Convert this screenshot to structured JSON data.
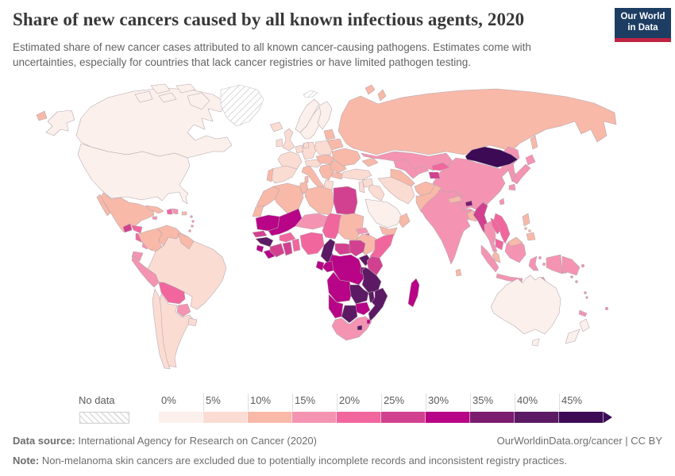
{
  "header": {
    "title": "Share of new cancers caused by all known infectious agents, 2020",
    "subtitle": "Estimated share of new cancer cases attributed to all known cancer-causing pathogens. Estimates come with uncertainties, especially for countries that lack cancer registries or have limited pathogen testing.",
    "logo": {
      "line1": "Our World",
      "line2": "in Data",
      "bg_color": "#1d3d63",
      "accent_color": "#bf2342"
    }
  },
  "legend": {
    "no_data_label": "No data",
    "bins": [
      {
        "label": "0%",
        "range": "0-5%",
        "color": "#fcf0ec"
      },
      {
        "label": "5%",
        "range": "5-10%",
        "color": "#fadcd3"
      },
      {
        "label": "10%",
        "range": "10-15%",
        "color": "#f8b9a9"
      },
      {
        "label": "15%",
        "range": "15-20%",
        "color": "#f494b2"
      },
      {
        "label": "20%",
        "range": "20-25%",
        "color": "#f2669e"
      },
      {
        "label": "25%",
        "range": "25-30%",
        "color": "#d2418f"
      },
      {
        "label": "30%",
        "range": "30-35%",
        "color": "#b80486"
      },
      {
        "label": "35%",
        "range": "35-40%",
        "color": "#7c1c6f"
      },
      {
        "label": "40%",
        "range": "40-45%",
        "color": "#5b1a63"
      },
      {
        "label": "45%",
        "range": "45%+",
        "color": "#3d0a56"
      }
    ]
  },
  "footer": {
    "data_source_label": "Data source:",
    "data_source_text": " International Agency for Research on Cancer (2020)",
    "link_text": "OurWorldinData.org/cancer | CC BY",
    "note_label": "Note:",
    "note_text": " Non-melanoma skin cancers are excluded due to potentially incomplete records and inconsistent registry practices."
  },
  "chart_data": {
    "type": "choropleth_map",
    "title": "Share of new cancers caused by all known infectious agents, 2020",
    "unit": "share of new cancer cases (%)",
    "legend_position": "bottom",
    "bins": [
      "0-5%",
      "5-10%",
      "10-15%",
      "15-20%",
      "20-25%",
      "25-30%",
      "30-35%",
      "35-40%",
      "40-45%",
      "45%+"
    ],
    "regions": {
      "canada": {
        "label": "Canada",
        "value": "0-5%",
        "color": "#fcf0ec"
      },
      "usa": {
        "label": "United States",
        "value": "0-5%",
        "color": "#fcf0ec"
      },
      "greenland": {
        "label": "Greenland",
        "value": "No data",
        "color": "pattern"
      },
      "svalbard": {
        "label": "Svalbard",
        "value": "No data",
        "color": "pattern"
      },
      "iceland": {
        "label": "Iceland",
        "value": "5-10%",
        "color": "#fadcd3"
      },
      "mexico": {
        "label": "Mexico",
        "value": "10-15%",
        "color": "#f8b9a9"
      },
      "guatemala": {
        "label": "Guatemala",
        "value": "25-30%",
        "color": "#d2418f"
      },
      "honduras": {
        "label": "Honduras",
        "value": "20-25%",
        "color": "#f2669e"
      },
      "nicaragua": {
        "label": "Nicaragua",
        "value": "20-25%",
        "color": "#f2669e"
      },
      "costa_rica": {
        "label": "Costa Rica",
        "value": "15-20%",
        "color": "#f494b2"
      },
      "panama": {
        "label": "Panama",
        "value": "15-20%",
        "color": "#f494b2"
      },
      "cuba": {
        "label": "Cuba",
        "value": "10-15%",
        "color": "#f8b9a9"
      },
      "jamaica": {
        "label": "Jamaica",
        "value": "15-20%",
        "color": "#f494b2"
      },
      "haiti": {
        "label": "Haiti",
        "value": "20-25%",
        "color": "#f2669e"
      },
      "dominican_republic": {
        "label": "Dominican Republic",
        "value": "15-20%",
        "color": "#f494b2"
      },
      "puerto_rico": {
        "label": "Puerto Rico",
        "value": "10-15%",
        "color": "#f8b9a9"
      },
      "lesser_antilles": {
        "label": "Lesser Antilles",
        "value": "15-20%",
        "color": "#f494b2"
      },
      "colombia": {
        "label": "Colombia",
        "value": "10-15%",
        "color": "#f8b9a9"
      },
      "venezuela": {
        "label": "Venezuela",
        "value": "10-15%",
        "color": "#f8b9a9"
      },
      "guyanas": {
        "label": "Guyana, Suriname & French Guiana",
        "value": "10-15%",
        "color": "#f8b9a9"
      },
      "ecuador": {
        "label": "Ecuador",
        "value": "15-20%",
        "color": "#f494b2"
      },
      "peru": {
        "label": "Peru",
        "value": "15-20%",
        "color": "#f494b2"
      },
      "brazil": {
        "label": "Brazil",
        "value": "5-10%",
        "color": "#fadcd3"
      },
      "bolivia": {
        "label": "Bolivia",
        "value": "20-25%",
        "color": "#f2669e"
      },
      "paraguay": {
        "label": "Paraguay",
        "value": "15-20%",
        "color": "#f494b2"
      },
      "chile": {
        "label": "Chile",
        "value": "5-10%",
        "color": "#fadcd3"
      },
      "argentina": {
        "label": "Argentina",
        "value": "5-10%",
        "color": "#fadcd3"
      },
      "uruguay": {
        "label": "Uruguay",
        "value": "5-10%",
        "color": "#fadcd3"
      },
      "norway": {
        "label": "Norway",
        "value": "0-5%",
        "color": "#fcf0ec"
      },
      "sweden": {
        "label": "Sweden",
        "value": "0-5%",
        "color": "#fcf0ec"
      },
      "finland": {
        "label": "Finland",
        "value": "0-5%",
        "color": "#fcf0ec"
      },
      "denmark": {
        "label": "Denmark",
        "value": "5-10%",
        "color": "#fadcd3"
      },
      "uk": {
        "label": "United Kingdom",
        "value": "5-10%",
        "color": "#fadcd3"
      },
      "ireland": {
        "label": "Ireland",
        "value": "5-10%",
        "color": "#fadcd3"
      },
      "france": {
        "label": "France",
        "value": "5-10%",
        "color": "#fadcd3"
      },
      "spain": {
        "label": "Spain",
        "value": "5-10%",
        "color": "#fadcd3"
      },
      "portugal": {
        "label": "Portugal",
        "value": "10-15%",
        "color": "#f8b9a9"
      },
      "benelux": {
        "label": "Belgium & Netherlands",
        "value": "5-10%",
        "color": "#fadcd3"
      },
      "germany": {
        "label": "Germany",
        "value": "5-10%",
        "color": "#fadcd3"
      },
      "switzerland_austria": {
        "label": "Switzerland & Austria",
        "value": "5-10%",
        "color": "#fadcd3"
      },
      "italy": {
        "label": "Italy",
        "value": "10-15%",
        "color": "#f8b9a9"
      },
      "poland": {
        "label": "Poland",
        "value": "5-10%",
        "color": "#fadcd3"
      },
      "czechia_hungary": {
        "label": "Czechia, Slovakia & Hungary",
        "value": "10-15%",
        "color": "#f8b9a9"
      },
      "balkans": {
        "label": "Balkans",
        "value": "10-15%",
        "color": "#f8b9a9"
      },
      "greece": {
        "label": "Greece",
        "value": "5-10%",
        "color": "#fadcd3"
      },
      "romania": {
        "label": "Romania",
        "value": "10-15%",
        "color": "#f8b9a9"
      },
      "bulgaria": {
        "label": "Bulgaria",
        "value": "10-15%",
        "color": "#f8b9a9"
      },
      "baltics": {
        "label": "Baltic states",
        "value": "10-15%",
        "color": "#f8b9a9"
      },
      "belarus": {
        "label": "Belarus",
        "value": "10-15%",
        "color": "#f8b9a9"
      },
      "ukraine": {
        "label": "Ukraine",
        "value": "10-15%",
        "color": "#f8b9a9"
      },
      "caucasus": {
        "label": "Caucasus",
        "value": "10-15%",
        "color": "#f8b9a9"
      },
      "russia": {
        "label": "Russia",
        "value": "10-15%",
        "color": "#f8b9a9"
      },
      "turkey": {
        "label": "Turkey",
        "value": "5-10%",
        "color": "#fadcd3"
      },
      "syria": {
        "label": "Syria",
        "value": "5-10%",
        "color": "#fadcd3"
      },
      "iraq": {
        "label": "Iraq",
        "value": "5-10%",
        "color": "#fadcd3"
      },
      "levant": {
        "label": "Jordan, Israel & Lebanon",
        "value": "5-10%",
        "color": "#fadcd3"
      },
      "saudi_arabia": {
        "label": "Saudi Arabia",
        "value": "0-5%",
        "color": "#fcf0ec"
      },
      "yemen": {
        "label": "Yemen",
        "value": "10-15%",
        "color": "#f8b9a9"
      },
      "oman": {
        "label": "Oman",
        "value": "10-15%",
        "color": "#f8b9a9"
      },
      "iran": {
        "label": "Iran",
        "value": "5-10%",
        "color": "#fadcd3"
      },
      "afghanistan": {
        "label": "Afghanistan",
        "value": "10-15%",
        "color": "#f8b9a9"
      },
      "pakistan": {
        "label": "Pakistan",
        "value": "10-15%",
        "color": "#f8b9a9"
      },
      "turkmenistan": {
        "label": "Turkmenistan",
        "value": "10-15%",
        "color": "#f8b9a9"
      },
      "uzbekistan": {
        "label": "Uzbekistan",
        "value": "15-20%",
        "color": "#f494b2"
      },
      "kyrgyzstan": {
        "label": "Kyrgyzstan",
        "value": "20-25%",
        "color": "#f2669e"
      },
      "tajikistan": {
        "label": "Tajikistan",
        "value": "25-30%",
        "color": "#d2418f"
      },
      "kazakhstan": {
        "label": "Kazakhstan",
        "value": "15-20%",
        "color": "#f494b2"
      },
      "mongolia": {
        "label": "Mongolia",
        "value": "45%+",
        "color": "#3d0a56"
      },
      "china": {
        "label": "China",
        "value": "15-20%",
        "color": "#f494b2"
      },
      "north_korea": {
        "label": "North Korea",
        "value": "15-20%",
        "color": "#f494b2"
      },
      "south_korea": {
        "label": "South Korea",
        "value": "15-20%",
        "color": "#f494b2"
      },
      "japan": {
        "label": "Japan",
        "value": "15-20%",
        "color": "#f494b2"
      },
      "taiwan": {
        "label": "Taiwan",
        "value": "15-20%",
        "color": "#f494b2"
      },
      "india": {
        "label": "India",
        "value": "15-20%",
        "color": "#f494b2"
      },
      "nepal": {
        "label": "Nepal",
        "value": "10-15%",
        "color": "#f8b9a9"
      },
      "bhutan": {
        "label": "Bhutan",
        "value": "35-40%",
        "color": "#7c1c6f"
      },
      "bangladesh": {
        "label": "Bangladesh",
        "value": "10-15%",
        "color": "#f8b9a9"
      },
      "sri_lanka": {
        "label": "Sri Lanka",
        "value": "10-15%",
        "color": "#f8b9a9"
      },
      "myanmar": {
        "label": "Myanmar",
        "value": "25-30%",
        "color": "#d2418f"
      },
      "thailand": {
        "label": "Thailand",
        "value": "15-20%",
        "color": "#f494b2"
      },
      "laos": {
        "label": "Laos",
        "value": "20-25%",
        "color": "#f2669e"
      },
      "vietnam": {
        "label": "Vietnam",
        "value": "20-25%",
        "color": "#f2669e"
      },
      "cambodia": {
        "label": "Cambodia",
        "value": "20-25%",
        "color": "#f2669e"
      },
      "malaysia": {
        "label": "Malaysia",
        "value": "10-15%",
        "color": "#f8b9a9"
      },
      "indonesia": {
        "label": "Indonesia",
        "value": "15-20%",
        "color": "#f494b2"
      },
      "philippines": {
        "label": "Philippines",
        "value": "10-15%",
        "color": "#f8b9a9"
      },
      "papua_new_guinea": {
        "label": "Papua New Guinea",
        "value": "15-20%",
        "color": "#f494b2"
      },
      "pacific_islands": {
        "label": "Pacific island states",
        "value": "15-20%",
        "color": "#f494b2"
      },
      "australia": {
        "label": "Australia",
        "value": "0-5%",
        "color": "#fcf0ec"
      },
      "new_zealand": {
        "label": "New Zealand",
        "value": "0-5%",
        "color": "#fcf0ec"
      },
      "morocco": {
        "label": "Morocco",
        "value": "10-15%",
        "color": "#f8b9a9"
      },
      "western_sahara": {
        "label": "Western Sahara",
        "value": "10-15%",
        "color": "#f8b9a9"
      },
      "algeria": {
        "label": "Algeria",
        "value": "10-15%",
        "color": "#f8b9a9"
      },
      "tunisia": {
        "label": "Tunisia",
        "value": "10-15%",
        "color": "#f8b9a9"
      },
      "libya": {
        "label": "Libya",
        "value": "10-15%",
        "color": "#f8b9a9"
      },
      "egypt": {
        "label": "Egypt",
        "value": "25-30%",
        "color": "#d2418f"
      },
      "mauritania": {
        "label": "Mauritania",
        "value": "30-35%",
        "color": "#b80486"
      },
      "mali": {
        "label": "Mali",
        "value": "30-35%",
        "color": "#b80486"
      },
      "niger": {
        "label": "Niger",
        "value": "15-20%",
        "color": "#f494b2"
      },
      "chad": {
        "label": "Chad",
        "value": "20-25%",
        "color": "#f2669e"
      },
      "sudan": {
        "label": "Sudan",
        "value": "10-15%",
        "color": "#f8b9a9"
      },
      "eritrea": {
        "label": "Eritrea",
        "value": "15-20%",
        "color": "#f494b2"
      },
      "djibouti": {
        "label": "Djibouti",
        "value": "20-25%",
        "color": "#f2669e"
      },
      "ethiopia": {
        "label": "Ethiopia",
        "value": "10-15%",
        "color": "#f8b9a9"
      },
      "somalia": {
        "label": "Somalia",
        "value": "20-25%",
        "color": "#f2669e"
      },
      "senegal": {
        "label": "Senegal",
        "value": "25-30%",
        "color": "#d2418f"
      },
      "guinea": {
        "label": "Guinea",
        "value": "40-45%",
        "color": "#5b1a63"
      },
      "sierra_leone": {
        "label": "Sierra Leone",
        "value": "30-35%",
        "color": "#b80486"
      },
      "liberia": {
        "label": "Liberia",
        "value": "30-35%",
        "color": "#b80486"
      },
      "ivory_coast": {
        "label": "Cote d'Ivoire",
        "value": "25-30%",
        "color": "#d2418f"
      },
      "ghana": {
        "label": "Ghana",
        "value": "25-30%",
        "color": "#d2418f"
      },
      "burkina_faso": {
        "label": "Burkina Faso",
        "value": "20-25%",
        "color": "#f2669e"
      },
      "togo_benin": {
        "label": "Togo & Benin",
        "value": "20-25%",
        "color": "#f2669e"
      },
      "nigeria": {
        "label": "Nigeria",
        "value": "20-25%",
        "color": "#f2669e"
      },
      "cameroon": {
        "label": "Cameroon",
        "value": "40-45%",
        "color": "#5b1a63"
      },
      "central_african_republic": {
        "label": "Central African Republic",
        "value": "25-30%",
        "color": "#d2418f"
      },
      "south_sudan": {
        "label": "South Sudan",
        "value": "25-30%",
        "color": "#d2418f"
      },
      "drc": {
        "label": "Democratic Republic of Congo",
        "value": "30-35%",
        "color": "#b80486"
      },
      "congo": {
        "label": "Congo",
        "value": "30-35%",
        "color": "#b80486"
      },
      "gabon": {
        "label": "Gabon",
        "value": "30-35%",
        "color": "#b80486"
      },
      "uganda": {
        "label": "Uganda",
        "value": "40-45%",
        "color": "#5b1a63"
      },
      "kenya": {
        "label": "Kenya",
        "value": "25-30%",
        "color": "#d2418f"
      },
      "rwanda_burundi": {
        "label": "Rwanda & Burundi",
        "value": "35-40%",
        "color": "#7c1c6f"
      },
      "tanzania": {
        "label": "Tanzania",
        "value": "40-45%",
        "color": "#5b1a63"
      },
      "angola": {
        "label": "Angola",
        "value": "30-35%",
        "color": "#b80486"
      },
      "zambia": {
        "label": "Zambia",
        "value": "40-45%",
        "color": "#5b1a63"
      },
      "malawi": {
        "label": "Malawi",
        "value": "40-45%",
        "color": "#5b1a63"
      },
      "mozambique": {
        "label": "Mozambique",
        "value": "40-45%",
        "color": "#5b1a63"
      },
      "zimbabwe": {
        "label": "Zimbabwe",
        "value": "30-35%",
        "color": "#b80486"
      },
      "botswana": {
        "label": "Botswana",
        "value": "40-45%",
        "color": "#5b1a63"
      },
      "namibia": {
        "label": "Namibia",
        "value": "30-35%",
        "color": "#b80486"
      },
      "south_africa": {
        "label": "South Africa",
        "value": "15-20%",
        "color": "#f494b2"
      },
      "lesotho": {
        "label": "Lesotho",
        "value": "40-45%",
        "color": "#5b1a63"
      },
      "eswatini": {
        "label": "Eswatini",
        "value": "30-35%",
        "color": "#b80486"
      },
      "madagascar": {
        "label": "Madagascar",
        "value": "30-35%",
        "color": "#b80486"
      }
    }
  }
}
